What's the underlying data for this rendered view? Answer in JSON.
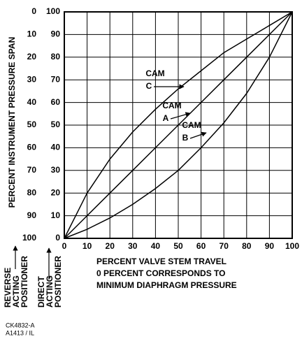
{
  "chart_data": {
    "type": "line",
    "y_label": "PERCENT INSTRUMENT PRESSURE SPAN",
    "x_label_lines": [
      "PERCENT VALVE STEM TRAVEL",
      "0 PERCENT CORRESPONDS TO",
      "MINIMUM DIAPHRAGM PRESSURE"
    ],
    "reverse_label_lines": [
      "REVERSE",
      "ACTING",
      "POSITIONER"
    ],
    "direct_label_lines": [
      "DIRECT",
      "ACTING",
      "POSITIONER"
    ],
    "footnote_lines": [
      "CK4832-A",
      "A1413 / IL"
    ],
    "x": [
      0,
      10,
      20,
      30,
      40,
      50,
      60,
      70,
      80,
      90,
      100
    ],
    "xlim": [
      0,
      100
    ],
    "xticks": [
      0,
      10,
      20,
      30,
      40,
      50,
      60,
      70,
      80,
      90,
      100
    ],
    "ylim": [
      0,
      100
    ],
    "yticks": [
      0,
      10,
      20,
      30,
      40,
      50,
      60,
      70,
      80,
      90,
      100
    ],
    "y2lim": [
      100,
      0
    ],
    "y2ticks": [
      0,
      10,
      20,
      30,
      40,
      50,
      60,
      70,
      80,
      90,
      100
    ],
    "grid": true,
    "series": [
      {
        "name": "C",
        "color": "#000000",
        "values": [
          0,
          20,
          35,
          47,
          57,
          66,
          74,
          82,
          88,
          94,
          100
        ]
      },
      {
        "name": "A",
        "color": "#000000",
        "values": [
          0,
          10,
          20,
          30,
          40,
          50,
          60,
          70,
          80,
          90,
          100
        ]
      },
      {
        "name": "B",
        "color": "#000000",
        "values": [
          0,
          4,
          9,
          15,
          22,
          30,
          40,
          51,
          64,
          80,
          100
        ]
      }
    ],
    "annotations": [
      {
        "text": "CAM",
        "series": "C"
      },
      {
        "text": "CAM",
        "series": "A"
      },
      {
        "text": "CAM",
        "series": "B"
      }
    ]
  }
}
